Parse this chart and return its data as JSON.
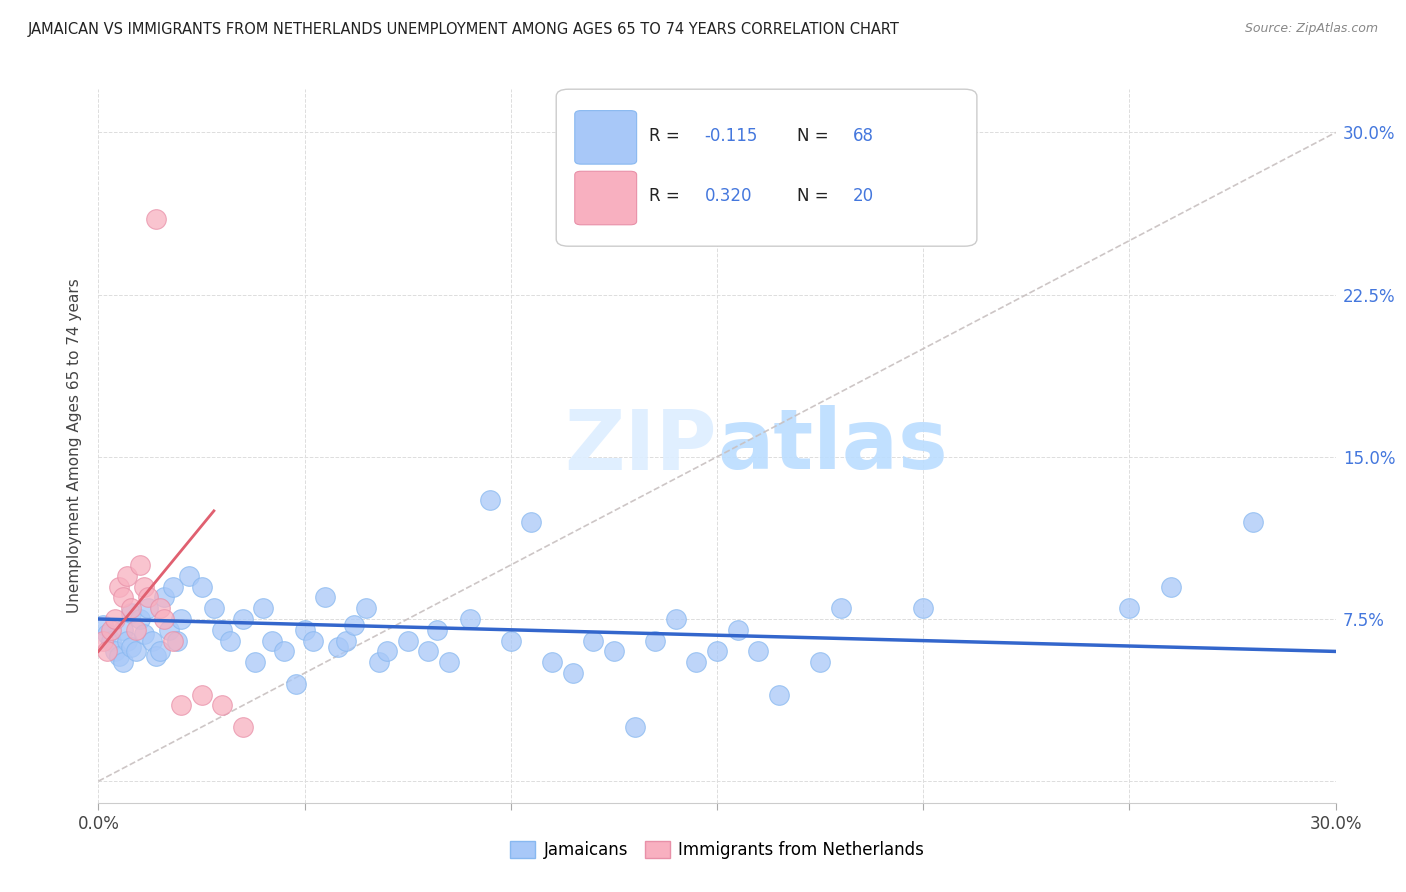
{
  "title": "JAMAICAN VS IMMIGRANTS FROM NETHERLANDS UNEMPLOYMENT AMONG AGES 65 TO 74 YEARS CORRELATION CHART",
  "source": "Source: ZipAtlas.com",
  "ylabel": "Unemployment Among Ages 65 to 74 years",
  "xlim": [
    0.0,
    0.3
  ],
  "ylim": [
    -0.01,
    0.32
  ],
  "color_jamaican": "#a8c8f8",
  "color_netherlands": "#f8b0c0",
  "color_line_jamaican": "#3366cc",
  "color_line_netherlands": "#e06070",
  "color_dashed": "#c8c0c0",
  "jx": [
    0.001,
    0.002,
    0.003,
    0.004,
    0.005,
    0.006,
    0.006,
    0.007,
    0.008,
    0.008,
    0.009,
    0.01,
    0.011,
    0.012,
    0.013,
    0.014,
    0.015,
    0.016,
    0.017,
    0.018,
    0.019,
    0.02,
    0.022,
    0.025,
    0.028,
    0.03,
    0.032,
    0.035,
    0.038,
    0.04,
    0.042,
    0.045,
    0.048,
    0.05,
    0.052,
    0.055,
    0.058,
    0.06,
    0.062,
    0.065,
    0.068,
    0.07,
    0.075,
    0.08,
    0.082,
    0.085,
    0.09,
    0.095,
    0.1,
    0.105,
    0.11,
    0.115,
    0.12,
    0.125,
    0.13,
    0.135,
    0.14,
    0.145,
    0.15,
    0.155,
    0.16,
    0.165,
    0.175,
    0.18,
    0.2,
    0.25,
    0.26,
    0.28
  ],
  "jy": [
    0.072,
    0.068,
    0.065,
    0.06,
    0.058,
    0.055,
    0.07,
    0.065,
    0.062,
    0.078,
    0.06,
    0.075,
    0.068,
    0.08,
    0.065,
    0.058,
    0.06,
    0.085,
    0.07,
    0.09,
    0.065,
    0.075,
    0.095,
    0.09,
    0.08,
    0.07,
    0.065,
    0.075,
    0.055,
    0.08,
    0.065,
    0.06,
    0.045,
    0.07,
    0.065,
    0.085,
    0.062,
    0.065,
    0.072,
    0.08,
    0.055,
    0.06,
    0.065,
    0.06,
    0.07,
    0.055,
    0.075,
    0.13,
    0.065,
    0.12,
    0.055,
    0.05,
    0.065,
    0.06,
    0.025,
    0.065,
    0.075,
    0.055,
    0.06,
    0.07,
    0.06,
    0.04,
    0.055,
    0.08,
    0.08,
    0.08,
    0.09,
    0.12
  ],
  "nx": [
    0.001,
    0.002,
    0.003,
    0.004,
    0.005,
    0.006,
    0.007,
    0.008,
    0.009,
    0.01,
    0.011,
    0.012,
    0.014,
    0.015,
    0.016,
    0.018,
    0.02,
    0.025,
    0.03,
    0.035
  ],
  "ny": [
    0.065,
    0.06,
    0.07,
    0.075,
    0.09,
    0.085,
    0.095,
    0.08,
    0.07,
    0.1,
    0.09,
    0.085,
    0.26,
    0.08,
    0.075,
    0.065,
    0.035,
    0.04,
    0.035,
    0.025
  ],
  "blue_line_x": [
    0.0,
    0.3
  ],
  "blue_line_y": [
    0.075,
    0.06
  ],
  "pink_line_x": [
    0.0,
    0.028
  ],
  "pink_line_y": [
    0.06,
    0.125
  ],
  "dash_line_x": [
    0.0,
    0.3
  ],
  "dash_line_y": [
    0.0,
    0.3
  ]
}
